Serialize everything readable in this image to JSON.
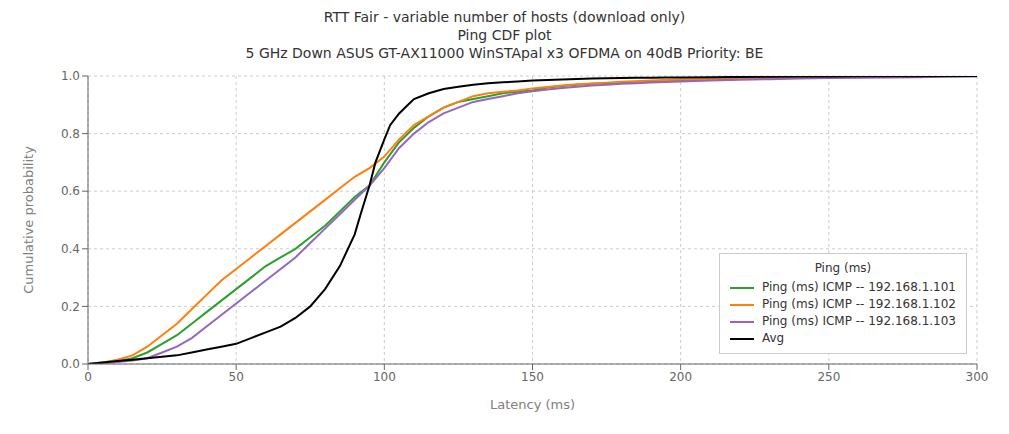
{
  "chart_data": {
    "type": "line",
    "title": "RTT Fair - variable number of hosts (download only)\nPing CDF plot\n5 GHz Down ASUS GT-AX11000 WinSTApal x3 OFDMA on 40dB Priority: BE",
    "x_label": "Latency (ms)",
    "y_label": "Cumulative probability",
    "xlim": [
      0,
      300
    ],
    "ylim": [
      0.0,
      1.0
    ],
    "xticks": [
      0,
      50,
      100,
      150,
      200,
      250,
      300
    ],
    "yticks": [
      {
        "value": 0,
        "label": "0.0"
      },
      0.2,
      0.4,
      0.6,
      0.8,
      {
        "value": 1,
        "label": "1.0"
      }
    ],
    "grid": true,
    "legend": "lower right",
    "legend_title": "Ping (ms)",
    "series": [
      {
        "name": "Ping (ms) ICMP -- 192.168.1.101",
        "color": "#2ca02c",
        "x": [
          0,
          5,
          10,
          15,
          20,
          25,
          30,
          35,
          40,
          45,
          50,
          55,
          60,
          65,
          70,
          75,
          80,
          85,
          90,
          95,
          100,
          105,
          110,
          115,
          120,
          125,
          130,
          135,
          140,
          145,
          150,
          155,
          160,
          165,
          170,
          175,
          180,
          185,
          190,
          195,
          200,
          210,
          220,
          230,
          240,
          250,
          260,
          270,
          280,
          290,
          300
        ],
        "values": [
          0.0,
          0.005,
          0.01,
          0.02,
          0.04,
          0.07,
          0.1,
          0.14,
          0.18,
          0.22,
          0.26,
          0.3,
          0.34,
          0.37,
          0.4,
          0.44,
          0.48,
          0.53,
          0.58,
          0.62,
          0.7,
          0.77,
          0.82,
          0.86,
          0.89,
          0.91,
          0.92,
          0.93,
          0.94,
          0.945,
          0.95,
          0.96,
          0.965,
          0.97,
          0.973,
          0.975,
          0.978,
          0.98,
          0.982,
          0.984,
          0.986,
          0.988,
          0.99,
          0.992,
          0.994,
          0.995,
          0.996,
          0.997,
          0.998,
          0.999,
          1.0
        ]
      },
      {
        "name": "Ping (ms) ICMP -- 192.168.1.102",
        "color": "#ff7f0e",
        "x": [
          0,
          5,
          10,
          15,
          20,
          25,
          30,
          35,
          40,
          45,
          50,
          55,
          60,
          65,
          70,
          75,
          80,
          85,
          90,
          95,
          100,
          105,
          110,
          115,
          120,
          125,
          130,
          135,
          140,
          145,
          150,
          155,
          160,
          165,
          170,
          175,
          180,
          185,
          190,
          195,
          200,
          210,
          220,
          230,
          240,
          250,
          260,
          270,
          280,
          290,
          300
        ],
        "values": [
          0.0,
          0.005,
          0.015,
          0.03,
          0.06,
          0.1,
          0.14,
          0.19,
          0.24,
          0.29,
          0.33,
          0.37,
          0.41,
          0.45,
          0.49,
          0.53,
          0.57,
          0.61,
          0.65,
          0.68,
          0.72,
          0.78,
          0.83,
          0.86,
          0.89,
          0.91,
          0.93,
          0.94,
          0.945,
          0.95,
          0.957,
          0.962,
          0.967,
          0.971,
          0.974,
          0.977,
          0.98,
          0.982,
          0.984,
          0.986,
          0.988,
          0.99,
          0.992,
          0.993,
          0.995,
          0.996,
          0.997,
          0.998,
          0.999,
          0.9995,
          1.0
        ]
      },
      {
        "name": "Ping (ms) ICMP -- 192.168.1.103",
        "color": "#9467bd",
        "x": [
          0,
          5,
          10,
          15,
          20,
          25,
          30,
          35,
          40,
          45,
          50,
          55,
          60,
          65,
          70,
          75,
          80,
          85,
          90,
          95,
          100,
          105,
          110,
          115,
          120,
          125,
          130,
          135,
          140,
          145,
          150,
          155,
          160,
          165,
          170,
          175,
          180,
          185,
          190,
          195,
          200,
          210,
          220,
          230,
          240,
          250,
          260,
          270,
          280,
          290,
          300
        ],
        "values": [
          0.0,
          0.003,
          0.007,
          0.012,
          0.02,
          0.04,
          0.06,
          0.09,
          0.13,
          0.17,
          0.21,
          0.25,
          0.29,
          0.33,
          0.37,
          0.42,
          0.47,
          0.52,
          0.57,
          0.62,
          0.68,
          0.75,
          0.8,
          0.84,
          0.87,
          0.89,
          0.91,
          0.92,
          0.93,
          0.94,
          0.947,
          0.953,
          0.958,
          0.963,
          0.967,
          0.97,
          0.973,
          0.975,
          0.977,
          0.979,
          0.981,
          0.984,
          0.987,
          0.989,
          0.991,
          0.993,
          0.994,
          0.995,
          0.996,
          0.997,
          0.998
        ]
      },
      {
        "name": "Avg",
        "color": "#000000",
        "x": [
          0,
          5,
          10,
          15,
          20,
          25,
          30,
          35,
          40,
          45,
          50,
          55,
          60,
          65,
          70,
          75,
          80,
          85,
          90,
          92,
          95,
          97,
          100,
          102,
          105,
          108,
          110,
          115,
          120,
          125,
          130,
          135,
          140,
          145,
          150,
          155,
          160,
          165,
          170,
          175,
          180,
          185,
          190,
          195,
          200,
          210,
          220,
          230,
          240,
          250,
          260,
          270,
          280,
          290,
          300
        ],
        "values": [
          0.0,
          0.005,
          0.01,
          0.015,
          0.02,
          0.025,
          0.03,
          0.04,
          0.05,
          0.06,
          0.07,
          0.09,
          0.11,
          0.13,
          0.16,
          0.2,
          0.26,
          0.34,
          0.45,
          0.52,
          0.62,
          0.7,
          0.78,
          0.83,
          0.87,
          0.9,
          0.92,
          0.94,
          0.955,
          0.963,
          0.97,
          0.975,
          0.978,
          0.981,
          0.984,
          0.986,
          0.988,
          0.99,
          0.991,
          0.992,
          0.993,
          0.9935,
          0.994,
          0.9945,
          0.995,
          0.996,
          0.9968,
          0.9975,
          0.998,
          0.9985,
          0.9988,
          0.9991,
          0.9994,
          0.9997,
          1.0
        ]
      }
    ]
  }
}
